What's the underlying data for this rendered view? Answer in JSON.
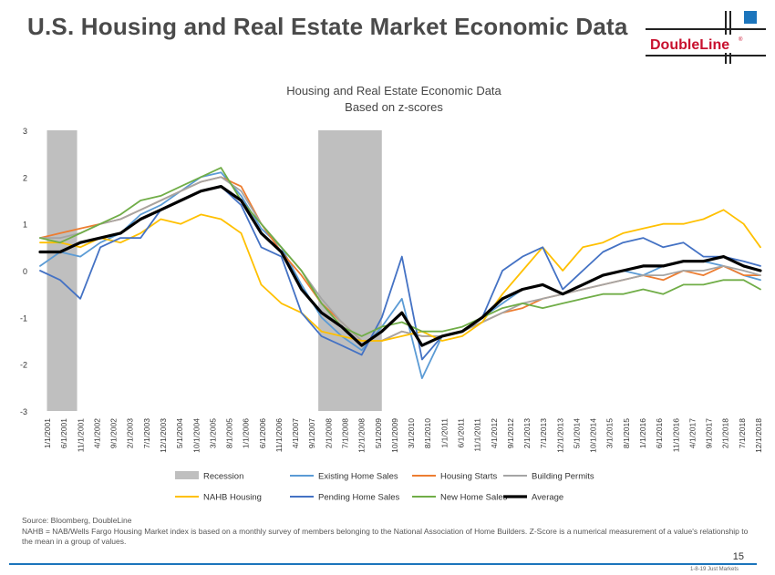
{
  "header": {
    "title": "U.S. Housing and Real Estate Market Economic Data",
    "logo_text": "DoubleLine",
    "logo_mark": "®"
  },
  "colors": {
    "title": "#4a4a4a",
    "brand_red": "#c8102e",
    "brand_blue": "#1c75bc",
    "recession": "#bfbfbf",
    "existing": "#5b9bd5",
    "starts": "#ed7d31",
    "permits": "#a5a5a5",
    "nahb": "#ffc000",
    "pending": "#4472c4",
    "newsales": "#70ad47",
    "average": "#000000"
  },
  "chart_data": {
    "type": "line",
    "title": "Housing and Real Estate Economic Data",
    "subtitle": "Based on z-scores",
    "ylim": [
      -3,
      3
    ],
    "yticks": [
      "3",
      "2",
      "1",
      "0",
      "-1",
      "-2",
      "-3"
    ],
    "xlim": [
      2001.0,
      2018.917
    ],
    "xtick_labels": [
      "1/1/2001",
      "6/1/2001",
      "11/1/2001",
      "4/1/2002",
      "9/1/2002",
      "2/1/2003",
      "7/1/2003",
      "12/1/2003",
      "5/1/2004",
      "10/1/2004",
      "3/1/2005",
      "8/1/2005",
      "1/1/2006",
      "6/1/2006",
      "11/1/2006",
      "4/1/2007",
      "9/1/2007",
      "2/1/2008",
      "7/1/2008",
      "12/1/2008",
      "5/1/2009",
      "10/1/2009",
      "3/1/2010",
      "8/1/2010",
      "1/1/2011",
      "6/1/2011",
      "11/1/2011",
      "4/1/2012",
      "9/1/2012",
      "2/1/2013",
      "7/1/2013",
      "12/1/2013",
      "5/1/2014",
      "10/1/2014",
      "3/1/2015",
      "8/1/2015",
      "1/1/2016",
      "6/1/2016",
      "11/1/2016",
      "4/1/2017",
      "9/1/2017",
      "2/1/2018",
      "7/1/2018",
      "12/1/2018"
    ],
    "recessions": [
      [
        2001.17,
        2001.92
      ],
      [
        2007.92,
        2009.5
      ]
    ],
    "x": [
      2001.0,
      2001.5,
      2002.0,
      2002.5,
      2003.0,
      2003.5,
      2004.0,
      2004.5,
      2005.0,
      2005.5,
      2006.0,
      2006.5,
      2007.0,
      2007.5,
      2008.0,
      2008.5,
      2009.0,
      2009.5,
      2010.0,
      2010.5,
      2011.0,
      2011.5,
      2012.0,
      2012.5,
      2013.0,
      2013.5,
      2014.0,
      2014.5,
      2015.0,
      2015.5,
      2016.0,
      2016.5,
      2017.0,
      2017.5,
      2018.0,
      2018.5,
      2018.917
    ],
    "series": [
      {
        "key": "existing",
        "name": "Existing Home Sales",
        "color": "#5b9bd5",
        "width": 1.8,
        "values": [
          0.1,
          0.4,
          0.3,
          0.6,
          0.8,
          1.2,
          1.4,
          1.7,
          2.0,
          2.1,
          1.6,
          0.9,
          0.5,
          -0.3,
          -1.0,
          -1.4,
          -1.7,
          -1.2,
          -0.6,
          -2.3,
          -1.4,
          -1.3,
          -1.0,
          -0.7,
          -0.4,
          -0.3,
          -0.5,
          -0.3,
          -0.1,
          0.0,
          -0.1,
          0.1,
          0.2,
          0.2,
          0.1,
          -0.1,
          -0.2
        ]
      },
      {
        "key": "starts",
        "name": "Housing Starts",
        "color": "#ed7d31",
        "width": 1.8,
        "values": [
          0.7,
          0.8,
          0.9,
          1.0,
          1.1,
          1.3,
          1.5,
          1.7,
          1.9,
          2.0,
          1.8,
          1.0,
          0.4,
          -0.1,
          -0.7,
          -1.1,
          -1.5,
          -1.5,
          -1.3,
          -1.4,
          -1.4,
          -1.3,
          -1.1,
          -0.9,
          -0.8,
          -0.6,
          -0.5,
          -0.4,
          -0.3,
          -0.2,
          -0.1,
          -0.2,
          0.0,
          -0.1,
          0.1,
          -0.1,
          -0.1
        ]
      },
      {
        "key": "permits",
        "name": "Building Permits",
        "color": "#a5a5a5",
        "width": 1.8,
        "values": [
          0.7,
          0.7,
          0.8,
          1.0,
          1.1,
          1.3,
          1.5,
          1.7,
          1.9,
          2.0,
          1.7,
          1.0,
          0.5,
          0.0,
          -0.6,
          -1.1,
          -1.5,
          -1.5,
          -1.3,
          -1.4,
          -1.4,
          -1.3,
          -1.1,
          -0.9,
          -0.7,
          -0.6,
          -0.5,
          -0.4,
          -0.3,
          -0.2,
          -0.1,
          -0.1,
          0.0,
          0.0,
          0.1,
          0.0,
          -0.1
        ]
      },
      {
        "key": "nahb",
        "name": "NAHB Housing",
        "color": "#ffc000",
        "width": 1.8,
        "values": [
          0.6,
          0.6,
          0.5,
          0.7,
          0.6,
          0.8,
          1.1,
          1.0,
          1.2,
          1.1,
          0.8,
          -0.3,
          -0.7,
          -0.9,
          -1.3,
          -1.4,
          -1.5,
          -1.5,
          -1.4,
          -1.3,
          -1.5,
          -1.4,
          -1.1,
          -0.5,
          0.0,
          0.5,
          0.0,
          0.5,
          0.6,
          0.8,
          0.9,
          1.0,
          1.0,
          1.1,
          1.3,
          1.0,
          0.5
        ]
      },
      {
        "key": "pending",
        "name": "Pending Home Sales",
        "color": "#4472c4",
        "width": 1.8,
        "values": [
          0.0,
          -0.2,
          -0.6,
          0.5,
          0.7,
          0.7,
          1.3,
          1.5,
          1.7,
          1.8,
          1.4,
          0.5,
          0.3,
          -0.9,
          -1.4,
          -1.6,
          -1.8,
          -1.0,
          0.3,
          -1.9,
          -1.4,
          -1.3,
          -1.0,
          0.0,
          0.3,
          0.5,
          -0.4,
          0.0,
          0.4,
          0.6,
          0.7,
          0.5,
          0.6,
          0.3,
          0.3,
          0.2,
          0.1
        ]
      },
      {
        "key": "newsales",
        "name": "New Home Sales",
        "color": "#70ad47",
        "width": 1.8,
        "values": [
          0.7,
          0.6,
          0.8,
          1.0,
          1.2,
          1.5,
          1.6,
          1.8,
          2.0,
          2.2,
          1.5,
          1.0,
          0.5,
          0.0,
          -0.7,
          -1.2,
          -1.4,
          -1.2,
          -1.1,
          -1.3,
          -1.3,
          -1.2,
          -1.0,
          -0.8,
          -0.7,
          -0.8,
          -0.7,
          -0.6,
          -0.5,
          -0.5,
          -0.4,
          -0.5,
          -0.3,
          -0.3,
          -0.2,
          -0.2,
          -0.4
        ]
      },
      {
        "key": "average",
        "name": "Average",
        "color": "#000000",
        "width": 3.2,
        "values": [
          0.4,
          0.4,
          0.6,
          0.7,
          0.8,
          1.1,
          1.3,
          1.5,
          1.7,
          1.8,
          1.5,
          0.8,
          0.4,
          -0.4,
          -0.9,
          -1.2,
          -1.6,
          -1.3,
          -0.9,
          -1.6,
          -1.4,
          -1.3,
          -1.0,
          -0.6,
          -0.4,
          -0.3,
          -0.5,
          -0.3,
          -0.1,
          0.0,
          0.1,
          0.1,
          0.2,
          0.2,
          0.3,
          0.1,
          0.0
        ]
      }
    ],
    "legend": {
      "rows": [
        [
          {
            "label": "Recession",
            "kind": "box",
            "color": "#bfbfbf"
          },
          {
            "label": "Existing Home Sales",
            "kind": "line",
            "color": "#5b9bd5"
          },
          {
            "label": "Housing Starts",
            "kind": "line",
            "color": "#ed7d31"
          },
          {
            "label": "Building Permits",
            "kind": "line",
            "color": "#a5a5a5"
          }
        ],
        [
          {
            "label": "NAHB Housing",
            "kind": "line",
            "color": "#ffc000"
          },
          {
            "label": "Pending Home Sales",
            "kind": "line",
            "color": "#4472c4"
          },
          {
            "label": "New Home Sales",
            "kind": "line",
            "color": "#70ad47"
          },
          {
            "label": "Average",
            "kind": "line",
            "color": "#000000",
            "bold": true
          }
        ]
      ]
    }
  },
  "footer": {
    "source": "Source: Bloomberg, DoubleLine",
    "note": "NAHB = NAB/Wells Fargo Housing Market index is based on a monthly survey of members belonging to the National Association of Home Builders. Z-Score is a numerical measurement of a value's relationship to the mean in a group of values.",
    "page": "15",
    "date": "1-8-19 Just Markets"
  }
}
